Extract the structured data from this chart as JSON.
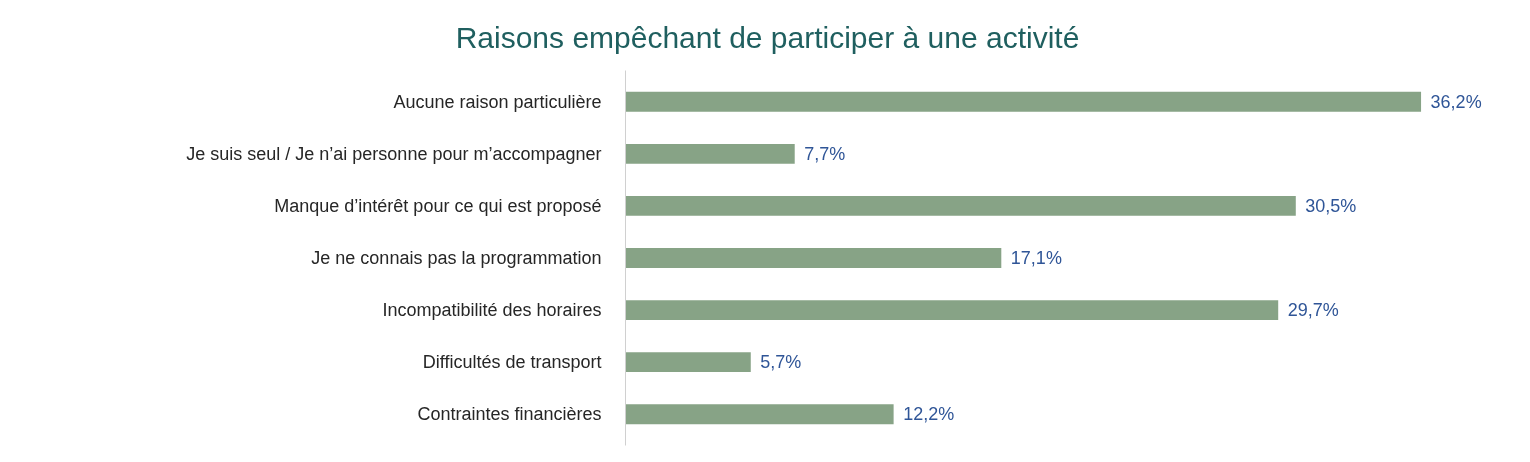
{
  "chart_data": {
    "type": "bar",
    "orientation": "horizontal",
    "title": "Raisons empêchant de participer à une activité",
    "categories": [
      "Aucune raison particulière",
      "Je suis seul / Je n’ai personne pour m’accompagner",
      "Manque d’intérêt pour ce qui est proposé",
      "Je ne connais pas la programmation",
      "Incompatibilité des horaires",
      "Difficultés de transport",
      "Contraintes financières"
    ],
    "values": [
      36.2,
      7.7,
      30.5,
      17.1,
      29.7,
      5.7,
      12.2
    ],
    "value_labels": [
      "36,2%",
      "7,7%",
      "30,5%",
      "17,1%",
      "29,7%",
      "5,7%",
      "12,2%"
    ],
    "color": "#87a386",
    "grid": false
  }
}
